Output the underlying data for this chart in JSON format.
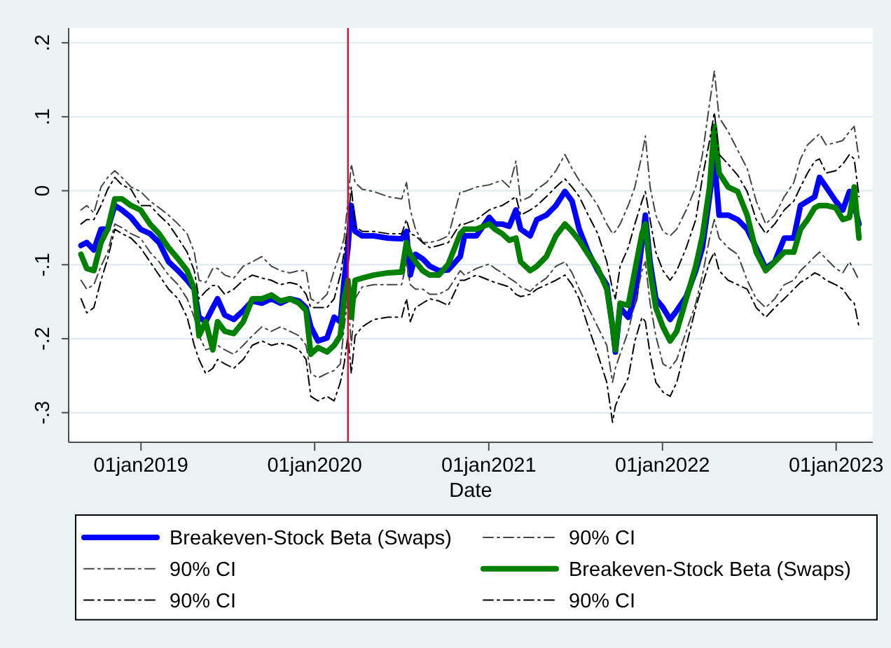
{
  "chart_data": {
    "type": "line",
    "xlabel": "Date",
    "x": [
      "2018-08-28",
      "2018-09-09",
      "2018-09-24",
      "2018-10-09",
      "2018-10-23",
      "2018-11-07",
      "2018-11-22",
      "2018-12-11",
      "2018-12-31",
      "2019-01-20",
      "2019-02-08",
      "2019-02-28",
      "2019-03-20",
      "2019-04-08",
      "2019-04-23",
      "2019-05-03",
      "2019-05-17",
      "2019-06-01",
      "2019-06-11",
      "2019-06-26",
      "2019-07-15",
      "2019-08-04",
      "2019-08-23",
      "2019-09-12",
      "2019-10-02",
      "2019-10-21",
      "2019-11-10",
      "2019-11-29",
      "2019-12-14",
      "2019-12-24",
      "2020-01-08",
      "2020-01-27",
      "2020-02-11",
      "2020-02-24",
      "2020-03-03",
      "2020-03-11",
      "2020-03-18",
      "2020-03-26",
      "2020-04-10",
      "2020-05-04",
      "2020-06-03",
      "2020-07-02",
      "2020-07-12",
      "2020-07-20",
      "2020-07-31",
      "2020-08-15",
      "2020-08-30",
      "2020-09-18",
      "2020-10-08",
      "2020-11-02",
      "2020-11-11",
      "2020-12-06",
      "2021-01-02",
      "2021-01-14",
      "2021-01-29",
      "2021-02-13",
      "2021-02-27",
      "2021-03-09",
      "2021-03-29",
      "2021-04-12",
      "2021-05-02",
      "2021-05-22",
      "2021-06-10",
      "2021-06-25",
      "2021-07-10",
      "2021-07-29",
      "2021-08-18",
      "2021-09-06",
      "2021-09-18",
      "2021-09-24",
      "2021-10-04",
      "2021-10-21",
      "2021-11-04",
      "2021-11-19",
      "2021-11-26",
      "2021-12-06",
      "2021-12-18",
      "2022-01-02",
      "2022-01-17",
      "2022-01-31",
      "2022-02-20",
      "2022-03-12",
      "2022-03-26",
      "2022-04-10",
      "2022-04-20",
      "2022-04-30",
      "2022-05-19",
      "2022-06-08",
      "2022-06-28",
      "2022-07-17",
      "2022-08-06",
      "2022-08-25",
      "2022-09-14",
      "2022-10-04",
      "2022-10-18",
      "2022-11-02",
      "2022-11-17",
      "2022-11-27",
      "2022-12-11",
      "2022-12-31",
      "2023-01-15",
      "2023-01-29",
      "2023-02-08",
      "2023-02-18"
    ],
    "xlim": [
      "2018-08-02",
      "2023-03-19"
    ],
    "xticks": [
      {
        "value": "2019-01-01",
        "label": "01jan2019"
      },
      {
        "value": "2020-01-01",
        "label": "01jan2020"
      },
      {
        "value": "2021-01-01",
        "label": "01jan2021"
      },
      {
        "value": "2022-01-01",
        "label": "01jan2022"
      },
      {
        "value": "2023-01-01",
        "label": "01jan2023"
      }
    ],
    "ylim": [
      -0.34,
      0.22
    ],
    "yticks": [
      {
        "value": -0.3,
        "label": "-.3"
      },
      {
        "value": -0.2,
        "label": "-.2"
      },
      {
        "value": -0.1,
        "label": "-.1"
      },
      0,
      {
        "value": 0.1,
        "label": ".1"
      },
      {
        "value": 0.2,
        "label": ".2"
      }
    ],
    "series": [
      {
        "name": "Breakeven-Stock Beta (Swaps)",
        "color": "#0000ff",
        "line_style": "solid",
        "values": [
          -0.074,
          -0.07,
          -0.08,
          -0.052,
          -0.052,
          -0.02,
          -0.026,
          -0.036,
          -0.052,
          -0.058,
          -0.07,
          -0.096,
          -0.108,
          -0.121,
          -0.133,
          -0.171,
          -0.177,
          -0.158,
          -0.146,
          -0.168,
          -0.174,
          -0.162,
          -0.149,
          -0.152,
          -0.146,
          -0.152,
          -0.146,
          -0.149,
          -0.158,
          -0.184,
          -0.203,
          -0.199,
          -0.171,
          -0.177,
          -0.121,
          -0.077,
          -0.02,
          -0.055,
          -0.061,
          -0.061,
          -0.064,
          -0.065,
          -0.055,
          -0.114,
          -0.086,
          -0.092,
          -0.102,
          -0.108,
          -0.107,
          -0.089,
          -0.061,
          -0.061,
          -0.036,
          -0.045,
          -0.045,
          -0.048,
          -0.026,
          -0.052,
          -0.061,
          -0.039,
          -0.033,
          -0.02,
          -0.001,
          -0.014,
          -0.052,
          -0.083,
          -0.108,
          -0.127,
          -0.184,
          -0.218,
          -0.158,
          -0.171,
          -0.146,
          -0.07,
          -0.033,
          -0.096,
          -0.146,
          -0.158,
          -0.174,
          -0.162,
          -0.143,
          -0.108,
          -0.077,
          -0.008,
          0.043,
          -0.033,
          -0.033,
          -0.039,
          -0.052,
          -0.077,
          -0.105,
          -0.096,
          -0.064,
          -0.064,
          -0.02,
          -0.014,
          -0.008,
          0.018,
          0.005,
          -0.014,
          -0.026,
          -0.001,
          -0.02,
          -0.045
        ]
      },
      {
        "name": "90% CI",
        "color": "#444444",
        "line_style": "dashed",
        "values": [
          -0.026,
          -0.02,
          -0.03,
          0.005,
          0.018,
          0.027,
          0.018,
          0.005,
          -0.001,
          -0.014,
          -0.023,
          -0.033,
          -0.045,
          -0.058,
          -0.083,
          -0.121,
          -0.124,
          -0.105,
          -0.105,
          -0.114,
          -0.118,
          -0.102,
          -0.096,
          -0.089,
          -0.102,
          -0.108,
          -0.111,
          -0.108,
          -0.108,
          -0.146,
          -0.152,
          -0.14,
          -0.108,
          -0.083,
          -0.064,
          -0.014,
          0.036,
          0.011,
          0.002,
          -0.001,
          -0.008,
          -0.011,
          0.011,
          -0.026,
          -0.052,
          -0.07,
          -0.07,
          -0.067,
          -0.061,
          -0.001,
          -0.001,
          0.005,
          0.008,
          0.011,
          0.014,
          0.005,
          0.04,
          -0.014,
          -0.008,
          0.002,
          0.011,
          0.027,
          0.049,
          0.03,
          0.014,
          -0.001,
          -0.02,
          -0.045,
          -0.058,
          -0.055,
          -0.045,
          -0.02,
          0.005,
          0.049,
          0.074,
          0.005,
          -0.033,
          -0.055,
          -0.061,
          -0.052,
          -0.026,
          0.005,
          0.049,
          0.118,
          0.162,
          0.099,
          0.08,
          0.055,
          0.03,
          -0.014,
          -0.045,
          -0.033,
          -0.008,
          0.011,
          0.043,
          0.062,
          0.071,
          0.077,
          0.062,
          0.065,
          0.068,
          0.08,
          0.087,
          0.043
        ]
      },
      {
        "name": "90% CI",
        "color": "#444444",
        "line_style": "dashed",
        "values": [
          -0.121,
          -0.133,
          -0.127,
          -0.102,
          -0.083,
          -0.045,
          -0.05,
          -0.058,
          -0.064,
          -0.083,
          -0.096,
          -0.114,
          -0.127,
          -0.146,
          -0.171,
          -0.196,
          -0.215,
          -0.212,
          -0.209,
          -0.215,
          -0.221,
          -0.209,
          -0.196,
          -0.184,
          -0.19,
          -0.184,
          -0.19,
          -0.196,
          -0.209,
          -0.247,
          -0.253,
          -0.247,
          -0.243,
          -0.234,
          -0.184,
          -0.146,
          -0.209,
          -0.146,
          -0.13,
          -0.127,
          -0.127,
          -0.127,
          -0.096,
          -0.127,
          -0.133,
          -0.133,
          -0.14,
          -0.14,
          -0.133,
          -0.108,
          -0.114,
          -0.105,
          -0.099,
          -0.105,
          -0.111,
          -0.118,
          -0.124,
          -0.13,
          -0.136,
          -0.127,
          -0.118,
          -0.102,
          -0.096,
          -0.111,
          -0.133,
          -0.158,
          -0.184,
          -0.209,
          -0.259,
          -0.24,
          -0.221,
          -0.19,
          -0.152,
          -0.108,
          -0.096,
          -0.152,
          -0.196,
          -0.234,
          -0.24,
          -0.228,
          -0.19,
          -0.152,
          -0.114,
          -0.064,
          -0.039,
          -0.064,
          -0.077,
          -0.086,
          -0.121,
          -0.146,
          -0.158,
          -0.146,
          -0.127,
          -0.121,
          -0.108,
          -0.099,
          -0.089,
          -0.083,
          -0.092,
          -0.105,
          -0.111,
          -0.096,
          -0.108,
          -0.121
        ]
      },
      {
        "name": "Breakeven-Stock Beta (Swaps)",
        "color": "#008000",
        "line_style": "solid",
        "values": [
          -0.086,
          -0.105,
          -0.108,
          -0.07,
          -0.052,
          -0.011,
          -0.011,
          -0.02,
          -0.026,
          -0.045,
          -0.058,
          -0.077,
          -0.092,
          -0.108,
          -0.133,
          -0.196,
          -0.177,
          -0.215,
          -0.177,
          -0.19,
          -0.193,
          -0.177,
          -0.146,
          -0.146,
          -0.141,
          -0.149,
          -0.146,
          -0.152,
          -0.162,
          -0.221,
          -0.212,
          -0.218,
          -0.209,
          -0.196,
          -0.146,
          -0.121,
          -0.171,
          -0.121,
          -0.118,
          -0.114,
          -0.111,
          -0.11,
          -0.07,
          -0.086,
          -0.096,
          -0.108,
          -0.114,
          -0.114,
          -0.099,
          -0.058,
          -0.052,
          -0.052,
          -0.045,
          -0.052,
          -0.058,
          -0.067,
          -0.064,
          -0.096,
          -0.108,
          -0.102,
          -0.089,
          -0.061,
          -0.045,
          -0.055,
          -0.067,
          -0.086,
          -0.105,
          -0.133,
          -0.184,
          -0.215,
          -0.152,
          -0.155,
          -0.108,
          -0.058,
          -0.045,
          -0.108,
          -0.158,
          -0.184,
          -0.203,
          -0.19,
          -0.146,
          -0.102,
          -0.061,
          0.005,
          0.087,
          0.024,
          0.005,
          -0.001,
          -0.033,
          -0.083,
          -0.108,
          -0.096,
          -0.083,
          -0.083,
          -0.052,
          -0.039,
          -0.023,
          -0.02,
          -0.02,
          -0.023,
          -0.039,
          -0.036,
          0.005,
          -0.064
        ]
      },
      {
        "name": "90% CI",
        "color": "#000000",
        "line_style": "dashed",
        "values": [
          -0.045,
          -0.039,
          -0.039,
          -0.02,
          0.002,
          0.018,
          0.008,
          0.002,
          -0.02,
          -0.02,
          -0.033,
          -0.045,
          -0.064,
          -0.083,
          -0.108,
          -0.146,
          -0.136,
          -0.128,
          -0.128,
          -0.14,
          -0.133,
          -0.121,
          -0.114,
          -0.118,
          -0.121,
          -0.127,
          -0.124,
          -0.127,
          -0.14,
          -0.158,
          -0.158,
          -0.158,
          -0.146,
          -0.114,
          -0.083,
          -0.045,
          0.005,
          -0.048,
          -0.055,
          -0.055,
          -0.058,
          -0.058,
          -0.039,
          -0.058,
          -0.061,
          -0.07,
          -0.077,
          -0.074,
          -0.07,
          -0.045,
          -0.045,
          -0.039,
          -0.026,
          -0.023,
          -0.02,
          -0.014,
          -0.008,
          -0.033,
          -0.026,
          -0.02,
          -0.008,
          0.005,
          0.016,
          0.005,
          -0.008,
          -0.033,
          -0.058,
          -0.096,
          -0.133,
          -0.146,
          -0.102,
          -0.077,
          -0.045,
          -0.014,
          -0.001,
          -0.039,
          -0.083,
          -0.108,
          -0.121,
          -0.108,
          -0.077,
          -0.039,
          0.018,
          0.068,
          0.106,
          0.049,
          0.036,
          0.021,
          -0.001,
          -0.039,
          -0.058,
          -0.045,
          -0.026,
          -0.014,
          0.005,
          0.024,
          0.04,
          0.043,
          0.024,
          0.027,
          0.036,
          0.049,
          0.043,
          -0.008
        ]
      },
      {
        "name": "90% CI",
        "color": "#000000",
        "line_style": "dashed",
        "values": [
          -0.146,
          -0.165,
          -0.158,
          -0.121,
          -0.092,
          -0.052,
          -0.058,
          -0.064,
          -0.077,
          -0.096,
          -0.114,
          -0.133,
          -0.146,
          -0.171,
          -0.209,
          -0.228,
          -0.247,
          -0.24,
          -0.228,
          -0.234,
          -0.24,
          -0.228,
          -0.209,
          -0.203,
          -0.209,
          -0.206,
          -0.209,
          -0.215,
          -0.228,
          -0.278,
          -0.284,
          -0.278,
          -0.284,
          -0.259,
          -0.234,
          -0.196,
          -0.247,
          -0.196,
          -0.184,
          -0.174,
          -0.171,
          -0.171,
          -0.146,
          -0.177,
          -0.158,
          -0.152,
          -0.146,
          -0.149,
          -0.155,
          -0.121,
          -0.121,
          -0.114,
          -0.121,
          -0.124,
          -0.127,
          -0.13,
          -0.14,
          -0.143,
          -0.14,
          -0.133,
          -0.127,
          -0.121,
          -0.114,
          -0.127,
          -0.146,
          -0.184,
          -0.221,
          -0.259,
          -0.313,
          -0.291,
          -0.275,
          -0.253,
          -0.203,
          -0.171,
          -0.177,
          -0.221,
          -0.259,
          -0.272,
          -0.278,
          -0.259,
          -0.209,
          -0.158,
          -0.127,
          -0.096,
          -0.083,
          -0.108,
          -0.121,
          -0.127,
          -0.133,
          -0.158,
          -0.171,
          -0.158,
          -0.146,
          -0.133,
          -0.124,
          -0.118,
          -0.111,
          -0.114,
          -0.121,
          -0.127,
          -0.133,
          -0.146,
          -0.152,
          -0.184
        ]
      }
    ],
    "ref_lines": [
      {
        "axis": "x",
        "value": "2020-03-11",
        "color": "#d0103a"
      }
    ],
    "grid": "y",
    "legend": "bottom"
  }
}
